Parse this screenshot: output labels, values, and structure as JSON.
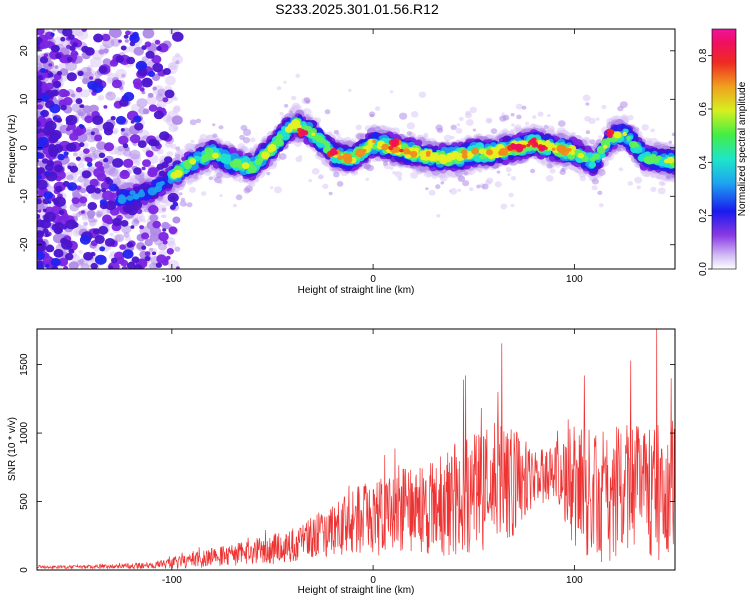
{
  "title": "S233.2025.301.01.56.R12",
  "chart_data": [
    {
      "type": "heatmap",
      "xlabel": "Height of straight line (km)",
      "ylabel": "Frequency (Hz)",
      "xlim": [
        -167,
        150
      ],
      "ylim": [
        -25,
        24.5
      ],
      "xticks": [
        -100,
        0,
        100
      ],
      "yticks": [
        -20,
        -10,
        0,
        10,
        20
      ],
      "ridge_x": [
        -167,
        -140,
        -110,
        -100,
        -90,
        -80,
        -70,
        -60,
        -50,
        -42,
        -38,
        -30,
        -25,
        -20,
        -15,
        -10,
        0,
        10,
        20,
        30,
        40,
        50,
        60,
        70,
        80,
        90,
        100,
        110,
        118,
        125,
        135,
        150
      ],
      "ridge_freq": [
        -10,
        -12,
        -9,
        -6,
        -3,
        -1,
        -3,
        -4,
        0,
        4,
        5,
        3,
        1,
        -1,
        -2,
        -2,
        1,
        0,
        -1,
        -2,
        -2,
        -1,
        -1,
        0,
        1,
        0,
        -1,
        -3,
        2,
        3,
        -2,
        -3
      ],
      "colorbar": {
        "label": "Normalized spectral amplitude",
        "range": [
          0.0,
          0.9
        ],
        "ticks": [
          0.0,
          0.2,
          0.4,
          0.6,
          0.8
        ],
        "tick_labels": [
          "0.0",
          "0.2",
          "0.4",
          "0.6",
          "0.8"
        ]
      },
      "colors": [
        "#ffffff",
        "#dcc8f6",
        "#b08ae8",
        "#7b24e2",
        "#4b14cc",
        "#2222ee",
        "#1e9af0",
        "#1ee0d2",
        "#5ef05a",
        "#e8f020",
        "#f08a1e",
        "#ef2a22",
        "#f0105e",
        "#f0129a"
      ]
    },
    {
      "type": "line",
      "xlabel": "Height of straight line (km)",
      "ylabel": "SNR (10 * v/v)",
      "xlim": [
        -167,
        150
      ],
      "ylim": [
        0,
        1760
      ],
      "xticks": [
        -100,
        0,
        100
      ],
      "yticks": [
        0,
        500,
        1000,
        1500
      ],
      "color": "#ee3333",
      "envelope_x": [
        -167,
        -130,
        -110,
        -100,
        -90,
        -80,
        -70,
        -60,
        -50,
        -40,
        -30,
        -20,
        -10,
        0,
        10,
        20,
        30,
        40,
        50,
        60,
        70,
        80,
        90,
        100,
        110,
        120,
        130,
        140,
        150
      ],
      "envelope_mid": [
        20,
        25,
        35,
        50,
        70,
        90,
        110,
        130,
        150,
        190,
        240,
        290,
        350,
        380,
        420,
        440,
        460,
        520,
        560,
        580,
        650,
        680,
        700,
        620,
        550,
        560,
        620,
        560,
        600
      ],
      "envelope_spread": [
        10,
        15,
        25,
        40,
        60,
        70,
        80,
        90,
        110,
        130,
        150,
        200,
        250,
        280,
        300,
        330,
        350,
        420,
        450,
        500,
        400,
        200,
        200,
        450,
        500,
        500,
        450,
        500,
        500
      ],
      "peaks": [
        {
          "x": 64,
          "y": 1655
        },
        {
          "x": 45,
          "y": 1390
        },
        {
          "x": 46,
          "y": 1420
        },
        {
          "x": 105,
          "y": 1420
        },
        {
          "x": 128,
          "y": 1530
        },
        {
          "x": 141,
          "y": 1760
        },
        {
          "x": 148,
          "y": 1400
        },
        {
          "x": 62,
          "y": 1300
        },
        {
          "x": 97,
          "y": 1100
        }
      ]
    }
  ]
}
